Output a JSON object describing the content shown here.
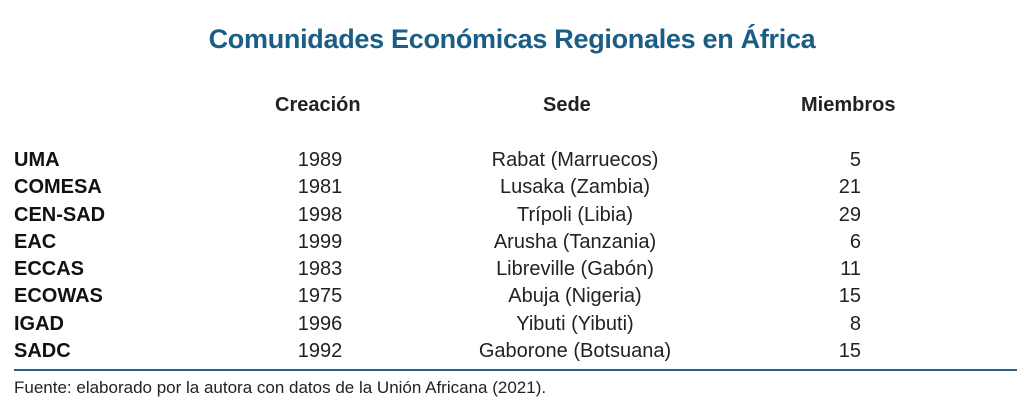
{
  "title": "Comunidades Económicas Regionales en África",
  "headers": {
    "creacion": "Creación",
    "sede": "Sede",
    "miembros": "Miembros"
  },
  "rows": [
    {
      "name": "UMA",
      "year": "1989",
      "sede": "Rabat (Marruecos)",
      "members": "5"
    },
    {
      "name": "COMESA",
      "year": "1981",
      "sede": "Lusaka (Zambia)",
      "members": "21"
    },
    {
      "name": "CEN-SAD",
      "year": "1998",
      "sede": "Trípoli (Libia)",
      "members": "29"
    },
    {
      "name": "EAC",
      "year": "1999",
      "sede": "Arusha (Tanzania)",
      "members": "6"
    },
    {
      "name": "ECCAS",
      "year": "1983",
      "sede": "Libreville (Gabón)",
      "members": "11"
    },
    {
      "name": "ECOWAS",
      "year": "1975",
      "sede": "Abuja (Nigeria)",
      "members": "15"
    },
    {
      "name": "IGAD",
      "year": "1996",
      "sede": "Yibuti (Yibuti)",
      "members": "8"
    },
    {
      "name": "SADC",
      "year": "1992",
      "sede": "Gaborone (Botsuana)",
      "members": "15"
    }
  ],
  "source": "Fuente: elaborado por la autora con datos de la Unión Africana (2021).",
  "colors": {
    "title": "#1a5d85",
    "rule": "#2b5f84"
  }
}
